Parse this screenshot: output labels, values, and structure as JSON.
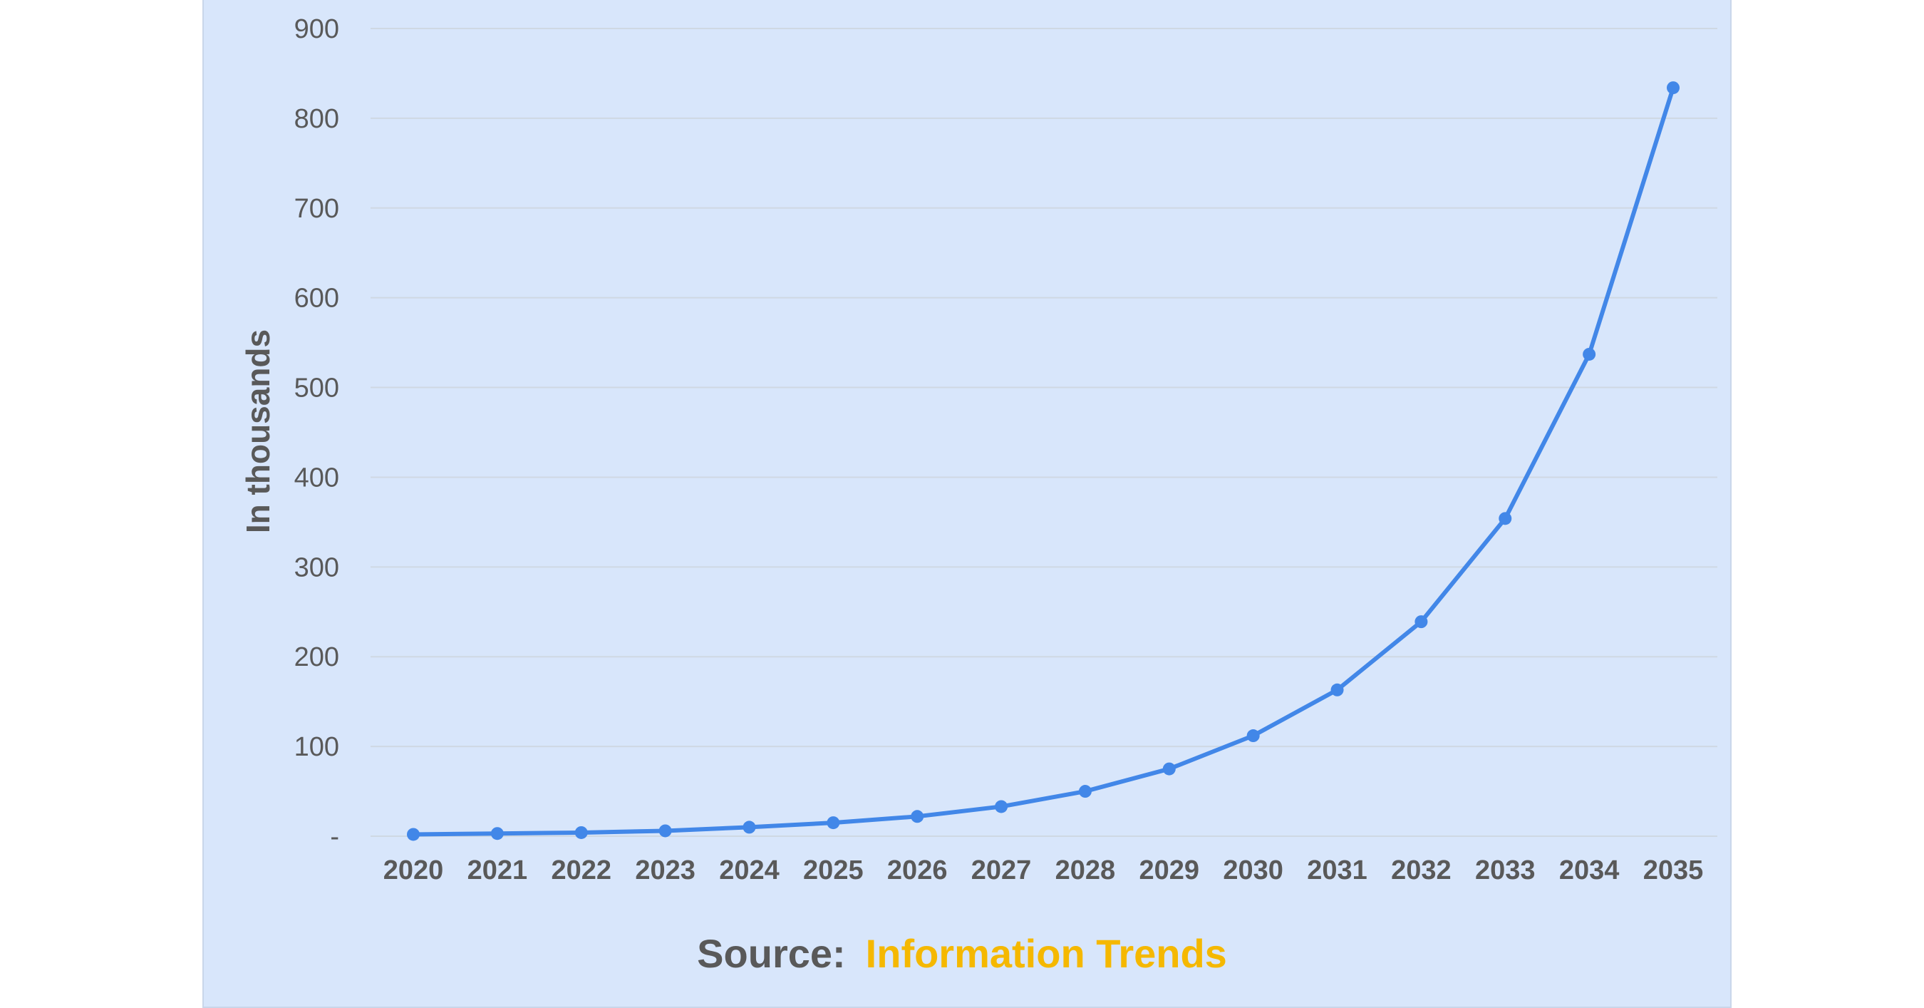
{
  "source": {
    "label": "Source:",
    "value": "Information Trends"
  },
  "colors": {
    "series": "#4287e8",
    "background": "#d8e6fb",
    "source_value": "#f5b800"
  },
  "chart_data": {
    "type": "line",
    "title": "",
    "xlabel": "",
    "ylabel": "In thousands",
    "categories": [
      "2020",
      "2021",
      "2022",
      "2023",
      "2024",
      "2025",
      "2026",
      "2027",
      "2028",
      "2029",
      "2030",
      "2031",
      "2032",
      "2033",
      "2034",
      "2035"
    ],
    "series": [
      {
        "values": [
          2,
          3,
          4,
          6,
          10,
          15,
          22,
          33,
          50,
          75,
          112,
          163,
          239,
          354,
          537,
          834
        ]
      }
    ],
    "yticks": [
      0,
      100,
      200,
      300,
      400,
      500,
      600,
      700,
      800,
      900
    ],
    "ytick_labels": [
      "-",
      "100",
      "200",
      "300",
      "400",
      "500",
      "600",
      "700",
      "800",
      "900"
    ],
    "ylim": [
      0,
      900
    ],
    "grid": true,
    "markers": true,
    "legend": "none"
  }
}
